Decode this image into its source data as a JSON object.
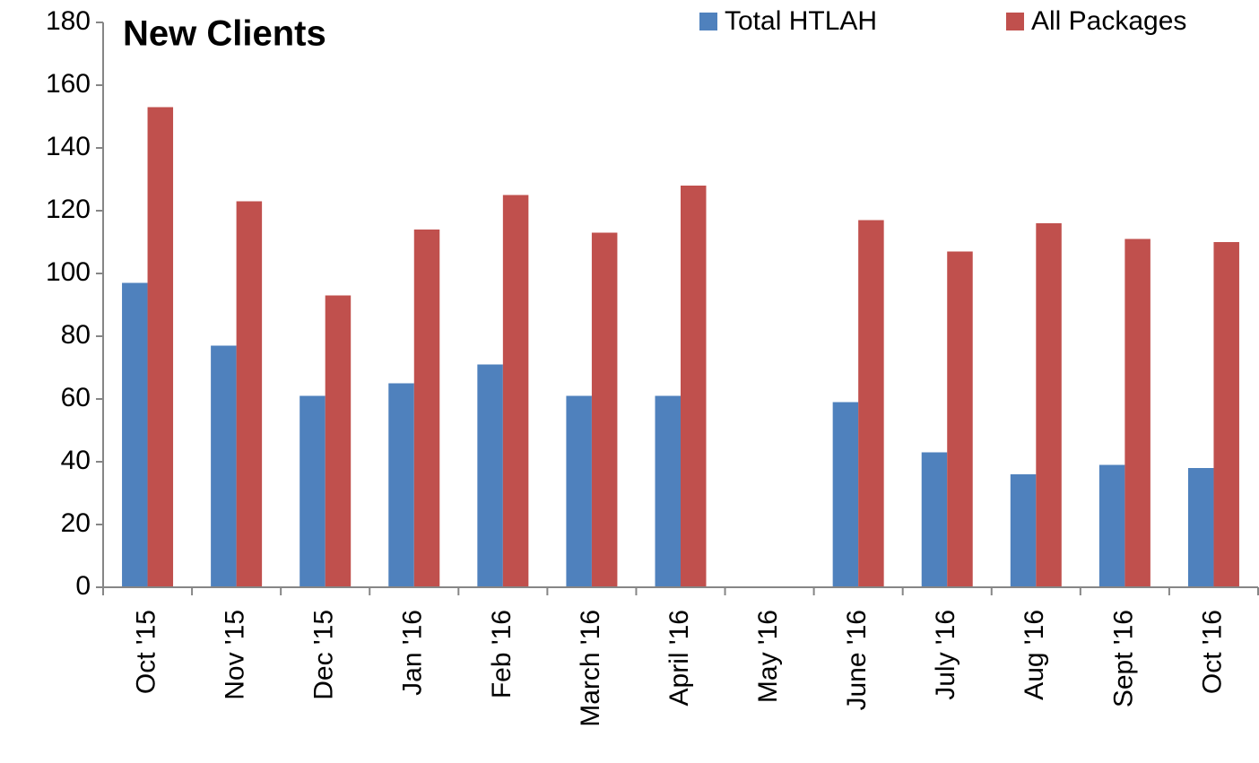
{
  "chart_data": {
    "type": "bar",
    "title": "New Clients",
    "categories": [
      "Oct '15",
      "Nov '15",
      "Dec '15",
      "Jan '16",
      "Feb '16",
      "March '16",
      "April '16",
      "May '16",
      "June '16",
      "July '16",
      "Aug '16",
      "Sept '16",
      "Oct '16"
    ],
    "series": [
      {
        "name": "Total HTLAH",
        "color": "#4f81bd",
        "values": [
          97,
          77,
          61,
          65,
          71,
          61,
          61,
          null,
          59,
          43,
          36,
          39,
          38
        ]
      },
      {
        "name": "All Packages",
        "color": "#c0504d",
        "values": [
          153,
          123,
          93,
          114,
          125,
          113,
          128,
          null,
          117,
          107,
          116,
          111,
          110
        ]
      }
    ],
    "ylim": [
      0,
      180
    ],
    "yticks": [
      0,
      20,
      40,
      60,
      80,
      100,
      120,
      140,
      160,
      180
    ],
    "grid": false,
    "legend": "upper right"
  }
}
